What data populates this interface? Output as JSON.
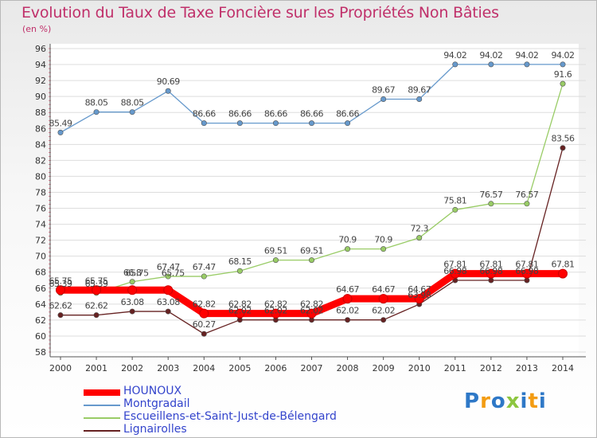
{
  "title": "Evolution du Taux de Taxe Foncière sur les Propriétés Non Bâties",
  "unit": "(en %)",
  "logo": {
    "parts": [
      "P",
      "r",
      "o",
      "x",
      "i",
      "t",
      "i"
    ],
    "colors": [
      "#2e78c7",
      "#f39c12",
      "#2e78c7",
      "#8dc63f",
      "#2e78c7",
      "#f39c12",
      "#2e78c7"
    ]
  },
  "chart_data": {
    "type": "line",
    "x": [
      "2000",
      "2001",
      "2002",
      "2003",
      "2004",
      "2005",
      "2006",
      "2007",
      "2008",
      "2009",
      "2010",
      "2011",
      "2012",
      "2013",
      "2014"
    ],
    "ylim": [
      58,
      96
    ],
    "yticks": [
      58,
      60,
      62,
      64,
      66,
      68,
      70,
      72,
      74,
      76,
      78,
      80,
      82,
      84,
      86,
      88,
      90,
      92,
      94,
      96
    ],
    "grid": "horizontal",
    "series": [
      {
        "name": "HOUNOUX",
        "color": "#ff0000",
        "highlight": true,
        "values": [
          65.75,
          65.75,
          65.75,
          65.75,
          62.82,
          62.82,
          62.82,
          62.82,
          64.67,
          64.67,
          64.67,
          67.81,
          67.81,
          67.81,
          67.81
        ],
        "labels": [
          "65.75",
          "65.75",
          "",
          "",
          "62.82",
          "62.82",
          "62.82",
          "62.82",
          "64.67",
          "64.67",
          "64.67",
          "67.81",
          "67.81",
          "67.81",
          "67.81"
        ]
      },
      {
        "name": "Montgradail",
        "color": "#6699cc",
        "values": [
          85.49,
          88.05,
          88.05,
          90.69,
          86.66,
          86.66,
          86.66,
          86.66,
          86.66,
          89.67,
          89.67,
          94.02,
          94.02,
          94.02,
          94.02
        ],
        "labels": [
          "85.49",
          "88.05",
          "88.05",
          "90.69",
          "86.66",
          "86.66",
          "86.66",
          "86.66",
          "86.66",
          "89.67",
          "89.67",
          "94.02",
          "94.02",
          "94.02",
          "94.02"
        ]
      },
      {
        "name": "Escueillens-et-Saint-Just-de-Bélengard",
        "color": "#99cc66",
        "values": [
          65.39,
          65.39,
          66.8,
          67.47,
          67.47,
          68.15,
          69.51,
          69.51,
          70.9,
          70.9,
          72.3,
          75.81,
          76.57,
          76.57,
          91.6
        ],
        "labels": [
          "65.39",
          "65.39",
          "66.8",
          "67.47",
          "67.47",
          "68.15",
          "69.51",
          "69.51",
          "70.9",
          "70.9",
          "72.3",
          "75.81",
          "76.57",
          "76.57",
          "91.6"
        ]
      },
      {
        "name": "Lignairolles",
        "color": "#662222",
        "values": [
          62.62,
          62.62,
          63.08,
          63.08,
          60.27,
          62.02,
          62.02,
          62.02,
          62.02,
          62.02,
          63.98,
          66.98,
          66.98,
          66.98,
          83.56
        ],
        "labels": [
          "62.62",
          "62.62",
          "63.08",
          "63.08",
          "60.27",
          "62.02",
          "62.02",
          "62.02",
          "62.02",
          "62.02",
          "63.98",
          "66.98",
          "66.98",
          "66.98",
          "83.56"
        ]
      }
    ],
    "extra_labels": [
      {
        "series": 0,
        "index": 2,
        "text": "65.75"
      },
      {
        "series": 0,
        "index": 3,
        "text": "65.75"
      }
    ],
    "legend_order": [
      0,
      1,
      2,
      3
    ],
    "legend_position": "bottom-left"
  }
}
